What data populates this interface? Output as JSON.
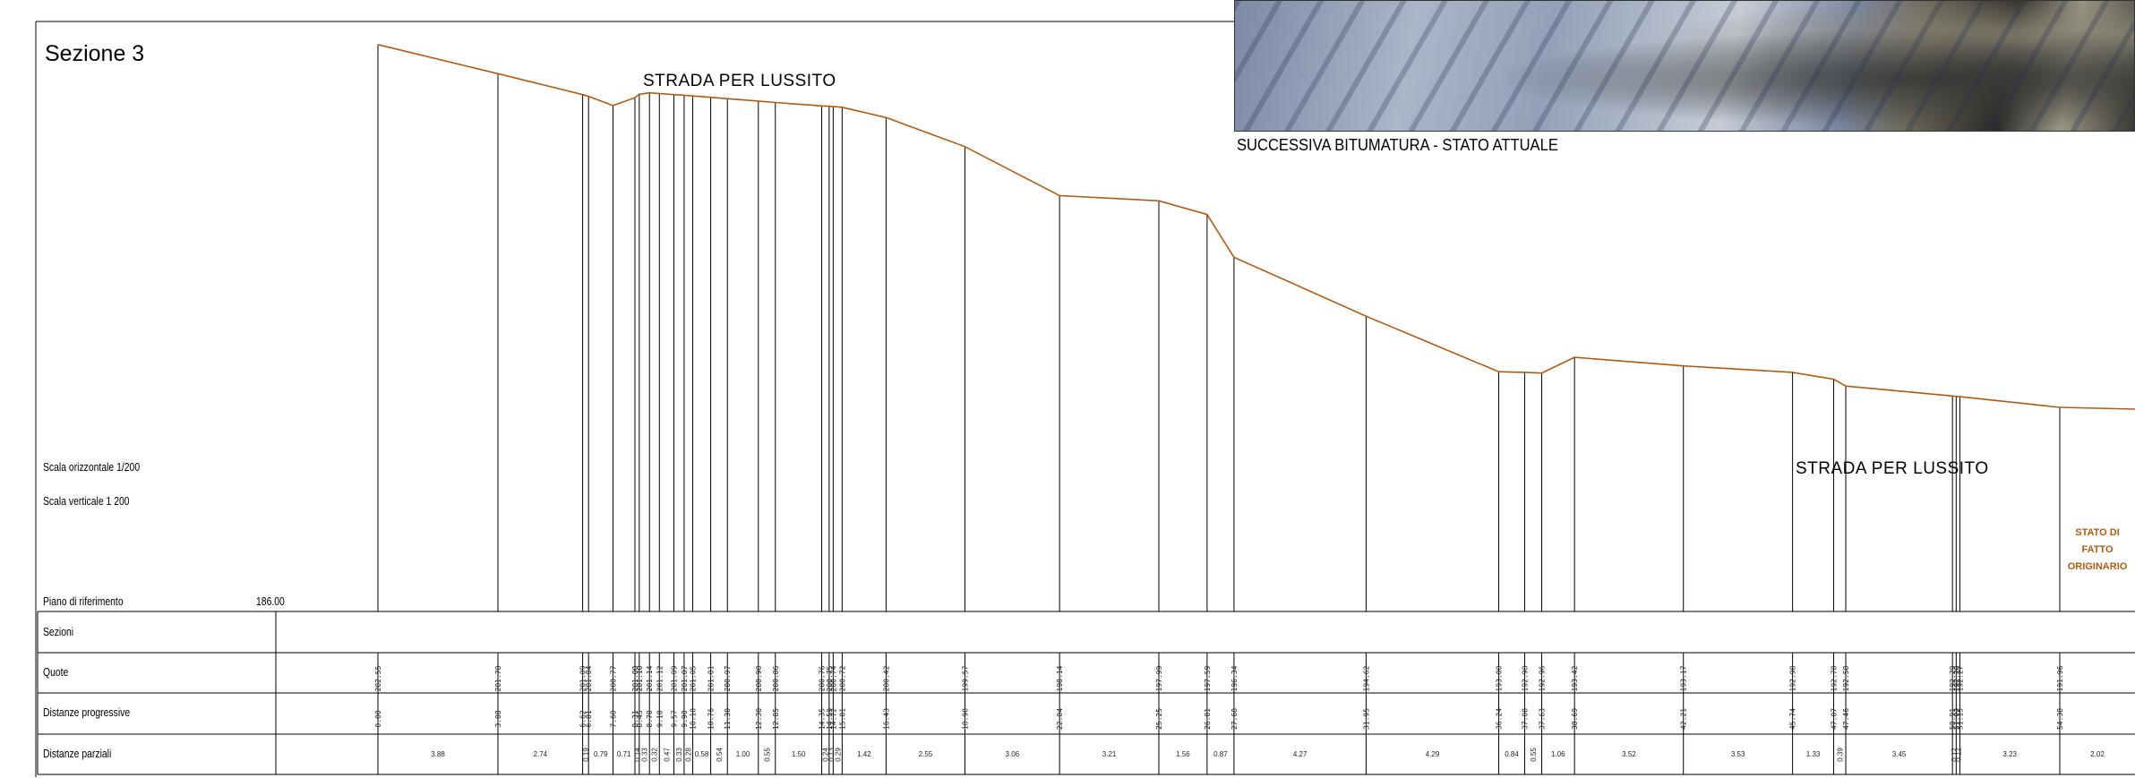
{
  "section_title": "Sezione  3",
  "scale_horizontal": "Scala orizzontale  1/200",
  "scale_vertical": "Scala verticale  1 200",
  "road_label_left": "STRADA PER LUSSITO",
  "road_label_right": "STRADA PER LUSSITO",
  "photo_caption": "SUCCESSIVA BITUMATURA - STATO ATTUALE",
  "stato_label": [
    "STATO DI",
    "FATTO",
    "ORIGINARIO"
  ],
  "reference_plane_label": "Piano di riferimento",
  "reference_plane_value": "186.00",
  "table_rows": {
    "sezioni": "Sezioni",
    "quote": "Quote",
    "distanze_progressive": "Distanze progressive",
    "distanze_parziali": "Distanze parziali"
  },
  "colors": {
    "profile": "#b35a10",
    "stato_text": "#b35a10",
    "lines": "#000000"
  },
  "profile": {
    "stations": [
      {
        "quota": "202.55",
        "progressiva": "0.00",
        "parziale": "3.88"
      },
      {
        "quota": "201.70",
        "progressiva": "3.88",
        "parziale": "2.74"
      },
      {
        "quota": "201.09",
        "progressiva": "6.62",
        "parziale": "0.19"
      },
      {
        "quota": "201.04",
        "progressiva": "6.81",
        "parziale": "0.79"
      },
      {
        "quota": "200.77",
        "progressiva": "7.60",
        "parziale": "0.71"
      },
      {
        "quota": "201.00",
        "progressiva": "8.31",
        "parziale": "0.14"
      },
      {
        "quota": "201.10",
        "progressiva": "8.45",
        "parziale": "0.33"
      },
      {
        "quota": "201.14",
        "progressiva": "8.78",
        "parziale": "0.32"
      },
      {
        "quota": "201.12",
        "progressiva": "9.10",
        "parziale": "0.47"
      },
      {
        "quota": "201.09",
        "progressiva": "9.57",
        "parziale": "0.33"
      },
      {
        "quota": "201.07",
        "progressiva": "9.90",
        "parziale": "0.28"
      },
      {
        "quota": "201.05",
        "progressiva": "10.18",
        "parziale": "0.58"
      },
      {
        "quota": "201.01",
        "progressiva": "10.76",
        "parziale": "0.54"
      },
      {
        "quota": "200.97",
        "progressiva": "11.30",
        "parziale": "1.00"
      },
      {
        "quota": "200.90",
        "progressiva": "12.30",
        "parziale": "0.55"
      },
      {
        "quota": "200.86",
        "progressiva": "12.85",
        "parziale": "1.50"
      },
      {
        "quota": "200.76",
        "progressiva": "14.35",
        "parziale": "0.24"
      },
      {
        "quota": "200.75",
        "progressiva": "14.59",
        "parziale": "0.13"
      },
      {
        "quota": "200.74",
        "progressiva": "14.72",
        "parziale": "0.29"
      },
      {
        "quota": "200.72",
        "progressiva": "15.01",
        "parziale": "1.42"
      },
      {
        "quota": "200.42",
        "progressiva": "16.43",
        "parziale": "2.55"
      },
      {
        "quota": "199.57",
        "progressiva": "18.98",
        "parziale": "3.06"
      },
      {
        "quota": "198.14",
        "progressiva": "22.04",
        "parziale": "3.21"
      },
      {
        "quota": "197.99",
        "progressiva": "25.25",
        "parziale": "1.56"
      },
      {
        "quota": "197.59",
        "progressiva": "26.81",
        "parziale": "0.87"
      },
      {
        "quota": "196.34",
        "progressiva": "27.68",
        "parziale": "4.27"
      },
      {
        "quota": "194.62",
        "progressiva": "31.95",
        "parziale": "4.29"
      },
      {
        "quota": "193.00",
        "progressiva": "36.24",
        "parziale": "0.84"
      },
      {
        "quota": "192.98",
        "progressiva": "37.08",
        "parziale": "0.55"
      },
      {
        "quota": "192.96",
        "progressiva": "37.63",
        "parziale": "1.06"
      },
      {
        "quota": "193.42",
        "progressiva": "38.69",
        "parziale": "3.52"
      },
      {
        "quota": "193.17",
        "progressiva": "42.21",
        "parziale": "3.53"
      },
      {
        "quota": "192.98",
        "progressiva": "45.74",
        "parziale": "1.33"
      },
      {
        "quota": "192.78",
        "progressiva": "47.07",
        "parziale": "0.39"
      },
      {
        "quota": "192.58",
        "progressiva": "47.46",
        "parziale": "3.45"
      },
      {
        "quota": "192.29",
        "progressiva": "50.91",
        "parziale": "0.12"
      },
      {
        "quota": "192.28",
        "progressiva": "51.03",
        "parziale": "0.12"
      },
      {
        "quota": "192.27",
        "progressiva": "51.15",
        "parziale": "3.23"
      },
      {
        "quota": "191.96",
        "progressiva": "54.38",
        "parziale": "2.02"
      }
    ]
  }
}
